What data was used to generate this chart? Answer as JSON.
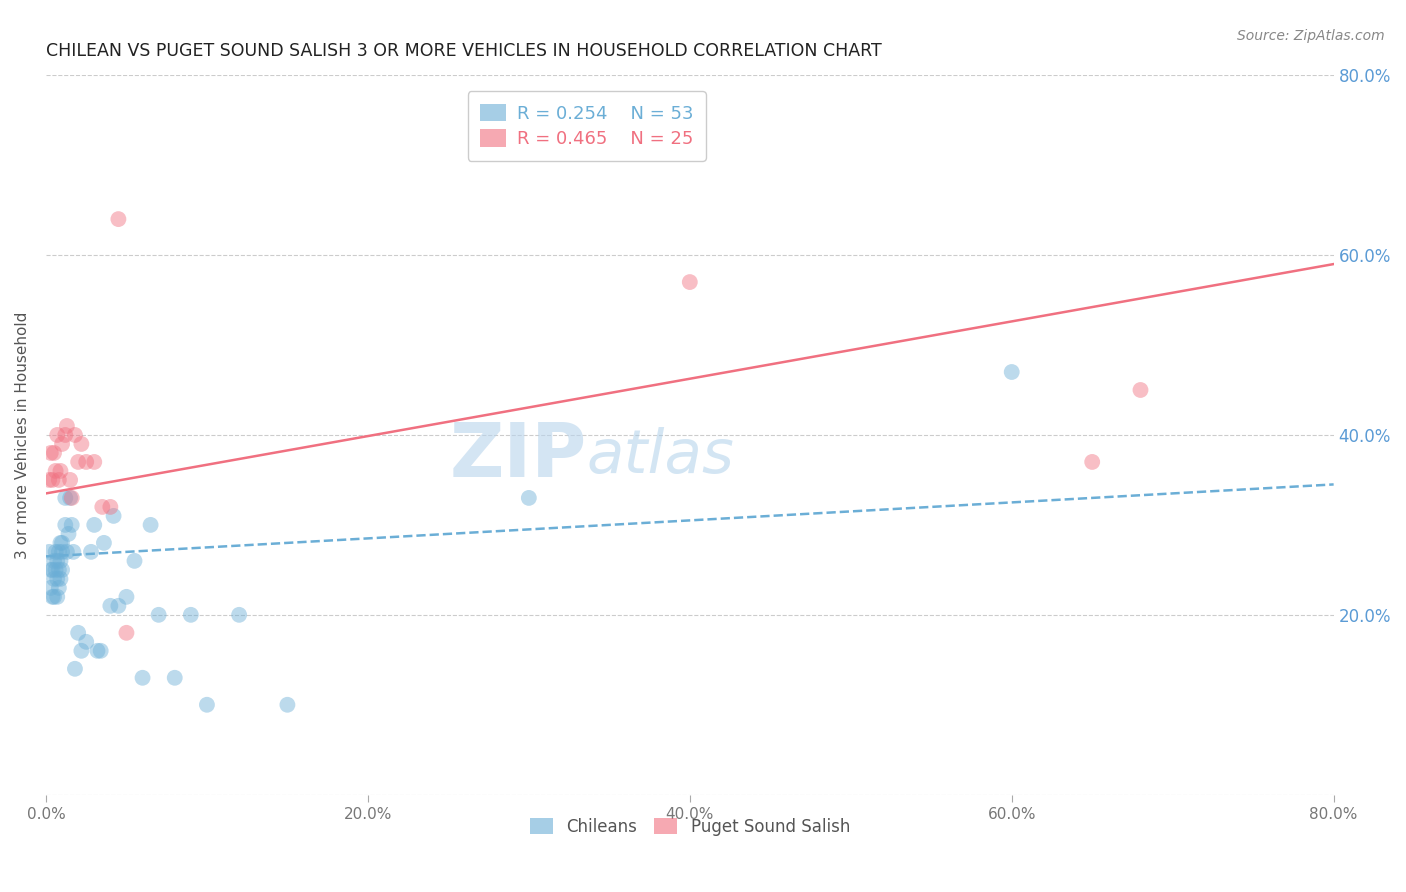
{
  "title": "CHILEAN VS PUGET SOUND SALISH 3 OR MORE VEHICLES IN HOUSEHOLD CORRELATION CHART",
  "source": "Source: ZipAtlas.com",
  "ylabel": "3 or more Vehicles in Household",
  "xlabel": "",
  "xlim": [
    0.0,
    0.8
  ],
  "ylim": [
    0.0,
    0.8
  ],
  "yticks_left": [
    0.0,
    0.2,
    0.4,
    0.6,
    0.8
  ],
  "xticks": [
    0.0,
    0.2,
    0.4,
    0.6,
    0.8
  ],
  "right_ytick_labels": [
    "80.0%",
    "60.0%",
    "40.0%",
    "20.0%"
  ],
  "right_ytick_vals": [
    0.8,
    0.6,
    0.4,
    0.2
  ],
  "blue_R": 0.254,
  "blue_N": 53,
  "pink_R": 0.465,
  "pink_N": 25,
  "blue_color": "#6baed6",
  "pink_color": "#f07080",
  "legend_blue_label": "Chileans",
  "legend_pink_label": "Puget Sound Salish",
  "blue_scatter_x": [
    0.002,
    0.003,
    0.003,
    0.004,
    0.004,
    0.005,
    0.005,
    0.005,
    0.006,
    0.006,
    0.007,
    0.007,
    0.007,
    0.008,
    0.008,
    0.008,
    0.009,
    0.009,
    0.009,
    0.01,
    0.01,
    0.01,
    0.012,
    0.012,
    0.013,
    0.014,
    0.015,
    0.016,
    0.017,
    0.018,
    0.02,
    0.022,
    0.025,
    0.028,
    0.03,
    0.032,
    0.034,
    0.036,
    0.04,
    0.042,
    0.045,
    0.05,
    0.055,
    0.06,
    0.065,
    0.07,
    0.08,
    0.09,
    0.1,
    0.12,
    0.15,
    0.3,
    0.6
  ],
  "blue_scatter_y": [
    0.27,
    0.25,
    0.23,
    0.25,
    0.22,
    0.26,
    0.24,
    0.22,
    0.27,
    0.25,
    0.26,
    0.24,
    0.22,
    0.27,
    0.25,
    0.23,
    0.28,
    0.26,
    0.24,
    0.28,
    0.27,
    0.25,
    0.33,
    0.3,
    0.27,
    0.29,
    0.33,
    0.3,
    0.27,
    0.14,
    0.18,
    0.16,
    0.17,
    0.27,
    0.3,
    0.16,
    0.16,
    0.28,
    0.21,
    0.31,
    0.21,
    0.22,
    0.26,
    0.13,
    0.3,
    0.2,
    0.13,
    0.2,
    0.1,
    0.2,
    0.1,
    0.33,
    0.47
  ],
  "pink_scatter_x": [
    0.002,
    0.003,
    0.004,
    0.005,
    0.006,
    0.007,
    0.008,
    0.009,
    0.01,
    0.012,
    0.013,
    0.015,
    0.016,
    0.018,
    0.02,
    0.022,
    0.025,
    0.03,
    0.035,
    0.04,
    0.045,
    0.05,
    0.4,
    0.65,
    0.68
  ],
  "pink_scatter_y": [
    0.35,
    0.38,
    0.35,
    0.38,
    0.36,
    0.4,
    0.35,
    0.36,
    0.39,
    0.4,
    0.41,
    0.35,
    0.33,
    0.4,
    0.37,
    0.39,
    0.37,
    0.37,
    0.32,
    0.32,
    0.64,
    0.18,
    0.57,
    0.37,
    0.45
  ],
  "blue_line_x0": 0.0,
  "blue_line_x1": 0.8,
  "blue_line_y0": 0.265,
  "blue_line_y1": 0.345,
  "pink_line_x0": 0.0,
  "pink_line_x1": 0.8,
  "pink_line_y0": 0.335,
  "pink_line_y1": 0.59,
  "background_color": "#ffffff",
  "grid_color": "#cccccc",
  "title_color": "#222222",
  "axis_label_color": "#555555",
  "right_axis_label_color": "#5b9bd5",
  "source_color": "#888888",
  "watermark_zip_color": "#b8d4ec",
  "watermark_atlas_color": "#a0c4e8"
}
